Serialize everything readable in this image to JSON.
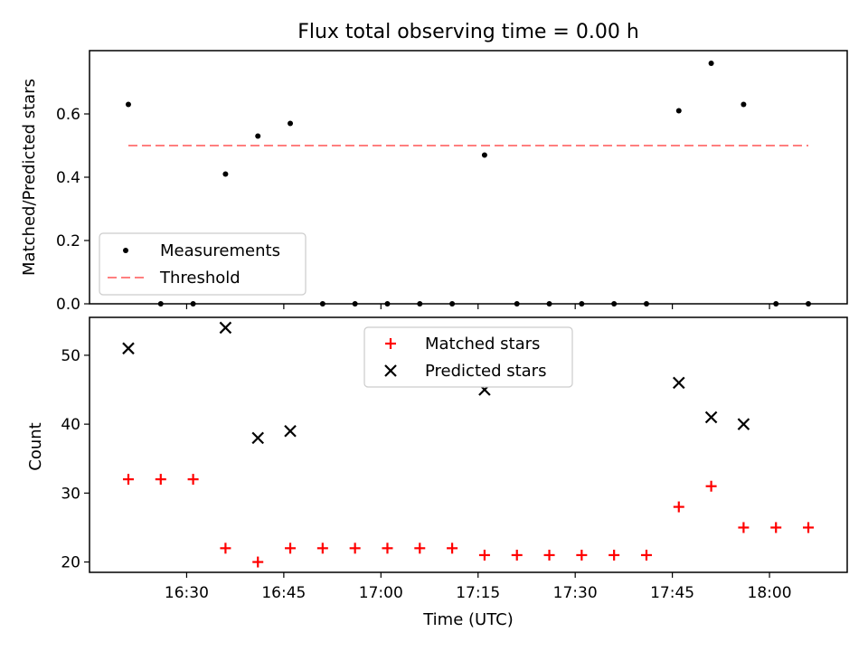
{
  "chart_data": [
    {
      "type": "scatter",
      "title": "Flux total observing time = 0.00 h",
      "xlabel": "",
      "ylabel": "Matched/Predicted stars",
      "ylim": [
        0,
        0.8
      ],
      "yticks": [
        "0.0",
        "0.2",
        "0.4",
        "0.6"
      ],
      "ytick_values": [
        0,
        0.2,
        0.4,
        0.6
      ],
      "legend_position": "lower-left",
      "series": [
        {
          "name": "Measurements",
          "marker": "dot",
          "color": "#000000",
          "x": [
            "16:21",
            "16:26",
            "16:31",
            "16:36",
            "16:41",
            "16:46",
            "16:51",
            "16:56",
            "17:01",
            "17:06",
            "17:11",
            "17:16",
            "17:21",
            "17:26",
            "17:31",
            "17:36",
            "17:41",
            "17:46",
            "17:51",
            "17:56",
            "18:01",
            "18:06"
          ],
          "y": [
            0.63,
            0,
            0,
            0.41,
            0.53,
            0.57,
            0,
            0,
            0,
            0,
            0,
            0.47,
            0,
            0,
            0,
            0,
            0,
            0.61,
            0.76,
            0.63,
            0,
            0
          ]
        },
        {
          "name": "Threshold",
          "line": "dashed",
          "color": "#ff7f7f",
          "x": [
            "16:21",
            "18:06"
          ],
          "y": [
            0.5,
            0.5
          ]
        }
      ]
    },
    {
      "type": "scatter",
      "title": "",
      "xlabel": "Time (UTC)",
      "ylabel": "Count",
      "ylim": [
        18.5,
        55.5
      ],
      "yticks": [
        "20",
        "30",
        "40",
        "50"
      ],
      "ytick_values": [
        20,
        30,
        40,
        50
      ],
      "xlim": [
        "16:15",
        "18:12"
      ],
      "xticks": [
        "16:30",
        "16:45",
        "17:00",
        "17:15",
        "17:30",
        "17:45",
        "18:00"
      ],
      "legend_position": "upper-center",
      "series": [
        {
          "name": "Matched stars",
          "marker": "plus",
          "color": "#ff0000",
          "x": [
            "16:21",
            "16:26",
            "16:31",
            "16:36",
            "16:41",
            "16:46",
            "16:51",
            "16:56",
            "17:01",
            "17:06",
            "17:11",
            "17:16",
            "17:21",
            "17:26",
            "17:31",
            "17:36",
            "17:41",
            "17:46",
            "17:51",
            "17:56",
            "18:01",
            "18:06"
          ],
          "y": [
            32,
            32,
            32,
            22,
            20,
            22,
            22,
            22,
            22,
            22,
            22,
            21,
            21,
            21,
            21,
            21,
            21,
            28,
            31,
            25,
            25,
            25
          ]
        },
        {
          "name": "Predicted stars",
          "marker": "x",
          "color": "#000000",
          "x": [
            "16:21",
            "16:36",
            "16:41",
            "16:46",
            "17:16",
            "17:46",
            "17:51",
            "17:56"
          ],
          "y": [
            51,
            54,
            38,
            39,
            45,
            46,
            41,
            40
          ]
        }
      ]
    }
  ]
}
